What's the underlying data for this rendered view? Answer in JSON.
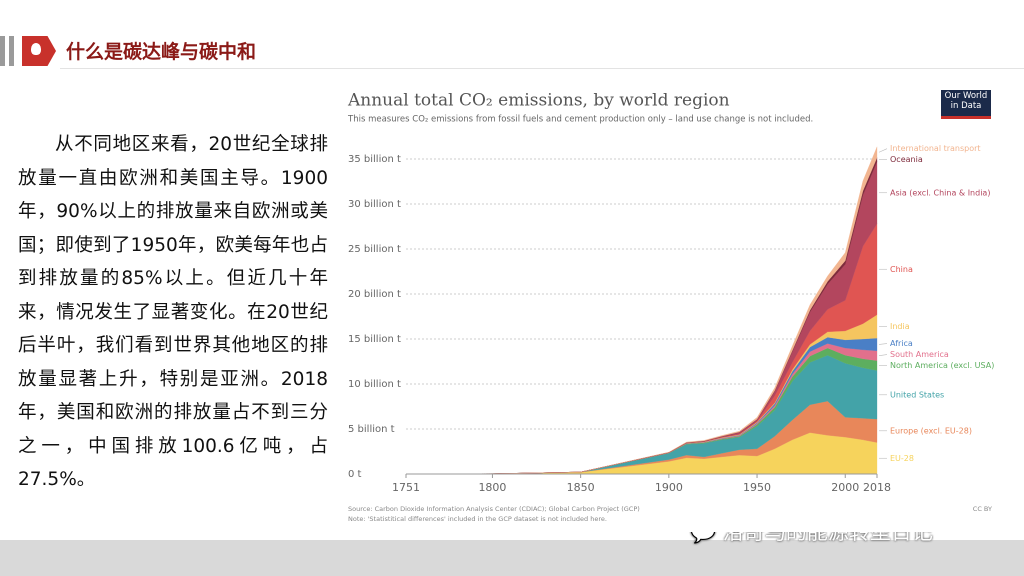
{
  "header": {
    "title": "什么是碳达峰与碳中和"
  },
  "body": {
    "paragraph": "从不同地区来看，20世纪全球排放量一直由欧洲和美国主导。1900年，90%以上的排放量来自欧洲或美国；即使到了1950年，欧美每年也占到排放量的85%以上。但近几十年来，情况发生了显著变化。在20世纪后半叶，我们看到世界其他地区的排放量显著上升，特别是亚洲。2018年，美国和欧洲的排放量占不到三分之一，中国排放100.6亿吨，占27.5%。"
  },
  "logo": {
    "text": "Our World in Data"
  },
  "watermark": {
    "text": "洛奇马的能源转型日记"
  },
  "chart_data": {
    "type": "stacked-area",
    "title": "Annual total CO₂ emissions, by world region",
    "subtitle": "This measures CO₂ emissions from fossil fuels and cement production only – land use change is not included.",
    "source": "Source: Carbon Dioxide Information Analysis Center (CDIAC); Global Carbon Project (GCP)",
    "note": "Note: 'Statistitical differences' included in the GCP dataset is not included here.",
    "license": "CC BY",
    "x": [
      1751,
      1800,
      1850,
      1900,
      1910,
      1920,
      1930,
      1940,
      1950,
      1960,
      1970,
      1980,
      1990,
      2000,
      2010,
      2018
    ],
    "xlim": [
      1751,
      2018
    ],
    "xticks": [
      1751,
      1800,
      1850,
      1900,
      1950,
      2000,
      2018
    ],
    "ylim": [
      0,
      37
    ],
    "yticks": [
      {
        "value": 0,
        "label": "0 t"
      },
      {
        "value": 5,
        "label": "5 billion t"
      },
      {
        "value": 10,
        "label": "10 billion t"
      },
      {
        "value": 15,
        "label": "15 billion t"
      },
      {
        "value": 20,
        "label": "20 billion t"
      },
      {
        "value": 25,
        "label": "25 billion t"
      },
      {
        "value": 30,
        "label": "30 billion t"
      },
      {
        "value": 35,
        "label": "35 billion t"
      }
    ],
    "grid": true,
    "series": [
      {
        "name": "EU-28",
        "color": "#f6d35c",
        "values": [
          0.01,
          0.03,
          0.2,
          1.4,
          1.8,
          1.7,
          1.9,
          2.1,
          2.0,
          2.8,
          3.8,
          4.6,
          4.3,
          4.1,
          3.8,
          3.5
        ]
      },
      {
        "name": "Europe (excl. EU-28)",
        "color": "#e8875a",
        "values": [
          0,
          0,
          0.01,
          0.2,
          0.3,
          0.2,
          0.4,
          0.6,
          0.8,
          1.4,
          2.2,
          3.1,
          3.8,
          2.2,
          2.4,
          2.6
        ]
      },
      {
        "name": "United States",
        "color": "#43a3a8",
        "values": [
          0,
          0,
          0.01,
          0.7,
          1.2,
          1.5,
          1.5,
          1.4,
          2.5,
          2.9,
          4.3,
          4.7,
          5.1,
          6.0,
          5.6,
          5.4
        ]
      },
      {
        "name": "North America (excl. USA)",
        "color": "#5dae5f",
        "values": [
          0,
          0,
          0,
          0.03,
          0.06,
          0.08,
          0.09,
          0.1,
          0.2,
          0.3,
          0.5,
          0.7,
          0.8,
          0.9,
          1.0,
          1.1
        ]
      },
      {
        "name": "South America",
        "color": "#e2708c",
        "values": [
          0,
          0,
          0,
          0.01,
          0.02,
          0.03,
          0.05,
          0.06,
          0.1,
          0.2,
          0.3,
          0.5,
          0.5,
          0.8,
          1.0,
          1.1
        ]
      },
      {
        "name": "Africa",
        "color": "#4a7fc6",
        "values": [
          0,
          0,
          0,
          0.01,
          0.02,
          0.03,
          0.05,
          0.06,
          0.1,
          0.2,
          0.3,
          0.5,
          0.7,
          0.9,
          1.2,
          1.4
        ]
      },
      {
        "name": "India",
        "color": "#f5c55f",
        "values": [
          0,
          0,
          0,
          0.02,
          0.03,
          0.04,
          0.05,
          0.06,
          0.07,
          0.1,
          0.2,
          0.3,
          0.6,
          1.0,
          1.7,
          2.6
        ]
      },
      {
        "name": "China",
        "color": "#e05552",
        "values": [
          0,
          0,
          0,
          0,
          0.01,
          0.02,
          0.03,
          0.05,
          0.08,
          0.8,
          0.8,
          1.5,
          2.5,
          3.4,
          8.6,
          10.1
        ]
      },
      {
        "name": "Asia (excl. China & India)",
        "color": "#b3465e",
        "values": [
          0,
          0,
          0,
          0.02,
          0.04,
          0.06,
          0.1,
          0.2,
          0.2,
          0.5,
          1.2,
          2.1,
          2.8,
          4.0,
          5.7,
          6.9
        ]
      },
      {
        "name": "Oceania",
        "color": "#7e2b3c",
        "values": [
          0,
          0,
          0,
          0.01,
          0.02,
          0.02,
          0.03,
          0.03,
          0.04,
          0.07,
          0.12,
          0.2,
          0.3,
          0.4,
          0.45,
          0.45
        ]
      },
      {
        "name": "International transport",
        "color": "#f2b590",
        "values": [
          0,
          0,
          0,
          0.03,
          0.05,
          0.06,
          0.08,
          0.1,
          0.2,
          0.3,
          0.5,
          0.6,
          0.6,
          0.9,
          1.1,
          1.2
        ]
      }
    ]
  }
}
